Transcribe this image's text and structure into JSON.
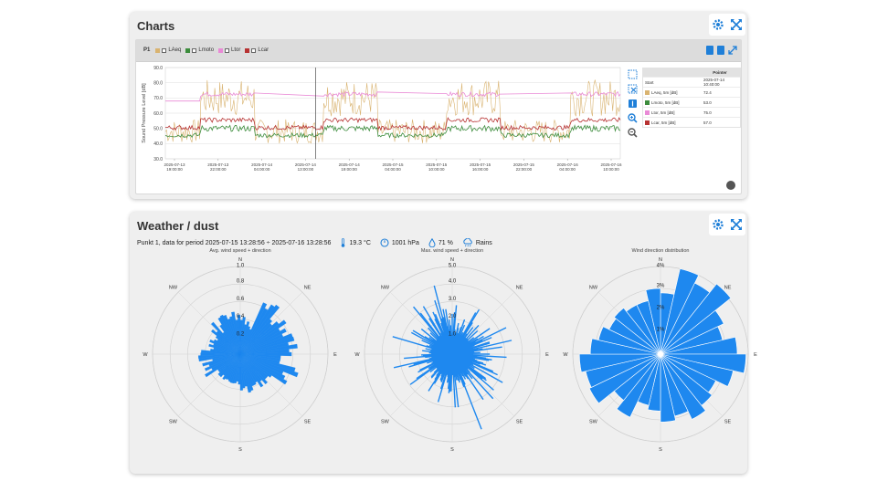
{
  "charts_panel": {
    "title": "Charts",
    "legend": {
      "station": "P1",
      "items": [
        {
          "label": "LAeq",
          "color": "#d9b370"
        },
        {
          "label": "Lmoto",
          "color": "#3c8c3c"
        },
        {
          "label": "Ltor",
          "color": "#e98ad6"
        },
        {
          "label": "Lcar",
          "color": "#b73232"
        }
      ]
    },
    "chart_data": {
      "type": "line",
      "ylabel": "Sound Pressure Level [dB]",
      "ylim": [
        30.0,
        90.0
      ],
      "yticks": [
        "90.0",
        "80.0",
        "70.0",
        "60.0",
        "50.0",
        "40.0",
        "30.0"
      ],
      "xticks": [
        [
          "2025-07-13",
          "19:00:00"
        ],
        [
          "2025-07-13",
          "22:00:00"
        ],
        [
          "2025-07-14",
          "04:00:00"
        ],
        [
          "2025-07-14",
          "13:00:00"
        ],
        [
          "2025-07-14",
          "19:00:00"
        ],
        [
          "2025-07-15",
          "04:00:00"
        ],
        [
          "2025-07-15",
          "10:00:00"
        ],
        [
          "2025-07-15",
          "16:00:00"
        ],
        [
          "2025-07-15",
          "22:00:00"
        ],
        [
          "2025-07-16",
          "04:00:00"
        ],
        [
          "2025-07-16",
          "10:00:00"
        ]
      ],
      "series": [
        {
          "name": "LAeq",
          "color": "#d9b370"
        },
        {
          "name": "Lmoto",
          "color": "#3c8c3c"
        },
        {
          "name": "Ltor",
          "color": "#e98ad6"
        },
        {
          "name": "Lcar",
          "color": "#b73232"
        }
      ]
    },
    "pointer_table": {
      "header": "Pointer",
      "rows": [
        {
          "label": "Start",
          "value": "2025-07-14 10:40:00",
          "color": ""
        },
        {
          "label": "LAeq, 5m [dB]",
          "value": "72.4",
          "color": "#d9b370"
        },
        {
          "label": "Lmoto, 5m [dB]",
          "value": "53.0",
          "color": "#3c8c3c"
        },
        {
          "label": "Ltor, 5m [dB]",
          "value": "75.0",
          "color": "#e98ad6"
        },
        {
          "label": "Lcar, 5m [dB]",
          "value": "57.0",
          "color": "#b73232"
        }
      ]
    }
  },
  "weather_panel": {
    "title": "Weather / dust",
    "period": "Punkt 1, data for period 2025-07-15 13:28:56 ÷ 2025-07-16 13:28:56",
    "temperature": "19.3 °C",
    "pressure": "1001 hPa",
    "humidity": "71 %",
    "rain": "Rains",
    "accent_color": "#1e88ef",
    "roses": [
      {
        "title": "Avg. wind speed + direction",
        "rings": [
          "1.0",
          "0.8",
          "0.6",
          "0.4",
          "0.2"
        ],
        "ring_max": 1.0
      },
      {
        "title": "Max. wind speed + direction",
        "rings": [
          "5.0",
          "4.0",
          "3.0",
          "2.0",
          "1.0"
        ],
        "ring_max": 5.0
      },
      {
        "title": "Wind direction distribution",
        "rings": [
          "4%",
          "3%",
          "2%",
          "1%"
        ],
        "ring_max": 4.0
      }
    ],
    "directions": [
      "N",
      "NE",
      "E",
      "SE",
      "S",
      "SW",
      "W",
      "NW"
    ]
  }
}
